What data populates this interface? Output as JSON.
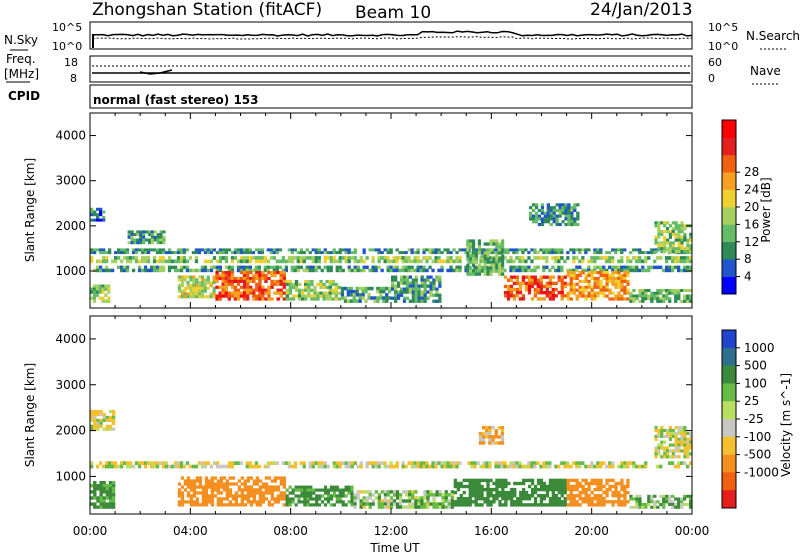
{
  "header": {
    "station": "Zhongshan Station (fitACF)",
    "beam": "Beam 10",
    "date": "24/Jan/2013"
  },
  "sky_panel": {
    "left_label": "N.Sky",
    "right_label": "N.Search",
    "left_ticks": [
      "10^5",
      "10^0"
    ],
    "right_ticks": [
      "10^5",
      "10^0"
    ]
  },
  "freq_panel": {
    "left_label_1": "Freq.",
    "left_label_2": "[MHz]",
    "right_label": "Nave",
    "left_ticks": [
      "18",
      "8"
    ],
    "right_ticks": [
      "60",
      "0"
    ]
  },
  "cpid": {
    "label": "CPID",
    "mode": "normal (fast stereo) 153"
  },
  "chart_data": [
    {
      "type": "heatmap",
      "name": "power",
      "ylabel": "Slant Range [km]",
      "xlabel": "Time UT",
      "x_ticks": [
        "00:00",
        "04:00",
        "08:00",
        "12:00",
        "16:00",
        "20:00",
        "00:00"
      ],
      "x_range_hours": [
        0,
        24
      ],
      "ylim": [
        180,
        4500
      ],
      "y_ticks": [
        1000,
        2000,
        3000,
        4000
      ],
      "colorbar": {
        "label": "Power [dB]",
        "ticks": [
          "4",
          "8",
          "12",
          "16",
          "20",
          "24",
          "28"
        ],
        "range": [
          0,
          30
        ],
        "colors": [
          "#0000ff",
          "#2255cc",
          "#2e8b57",
          "#66bb66",
          "#a8d060",
          "#f0d030",
          "#f5a020",
          "#f06010",
          "#e51e1e",
          "#ff0000"
        ]
      },
      "regions": [
        {
          "t0": 0.0,
          "t1": 24.0,
          "r0": 1180,
          "r1": 1330,
          "level": 12
        },
        {
          "t0": 0.0,
          "t1": 24.0,
          "r0": 1380,
          "r1": 1500,
          "level": 7
        },
        {
          "t0": 0.0,
          "t1": 24.0,
          "r0": 980,
          "r1": 1120,
          "level": 8
        },
        {
          "t0": 0.0,
          "t1": 0.6,
          "r0": 2100,
          "r1": 2400,
          "level": 5
        },
        {
          "t0": 1.5,
          "t1": 3.0,
          "r0": 1600,
          "r1": 1900,
          "level": 8
        },
        {
          "t0": 0.0,
          "t1": 0.8,
          "r0": 300,
          "r1": 700,
          "level": 12
        },
        {
          "t0": 3.5,
          "t1": 5.0,
          "r0": 400,
          "r1": 900,
          "level": 14
        },
        {
          "t0": 5.0,
          "t1": 7.8,
          "r0": 350,
          "r1": 1000,
          "level": 24
        },
        {
          "t0": 7.8,
          "t1": 10.0,
          "r0": 350,
          "r1": 800,
          "level": 12
        },
        {
          "t0": 10.0,
          "t1": 12.0,
          "r0": 300,
          "r1": 650,
          "level": 8
        },
        {
          "t0": 12.0,
          "t1": 14.0,
          "r0": 300,
          "r1": 900,
          "level": 8
        },
        {
          "t0": 15.0,
          "t1": 16.5,
          "r0": 900,
          "r1": 1700,
          "level": 10
        },
        {
          "t0": 16.5,
          "t1": 19.0,
          "r0": 350,
          "r1": 900,
          "level": 24
        },
        {
          "t0": 17.5,
          "t1": 19.5,
          "r0": 2000,
          "r1": 2500,
          "level": 7
        },
        {
          "t0": 19.0,
          "t1": 21.5,
          "r0": 350,
          "r1": 1000,
          "level": 20
        },
        {
          "t0": 21.5,
          "t1": 24.0,
          "r0": 300,
          "r1": 600,
          "level": 10
        },
        {
          "t0": 22.5,
          "t1": 24.0,
          "r0": 1400,
          "r1": 2100,
          "level": 12
        }
      ]
    },
    {
      "type": "heatmap",
      "name": "velocity",
      "ylabel": "Slant Range [km]",
      "xlabel": "Time UT",
      "x_ticks": [
        "00:00",
        "04:00",
        "08:00",
        "12:00",
        "16:00",
        "20:00",
        "00:00"
      ],
      "x_range_hours": [
        0,
        24
      ],
      "ylim": [
        180,
        4500
      ],
      "y_ticks": [
        1000,
        2000,
        3000,
        4000
      ],
      "colorbar": {
        "label": "Velocity [m s^-1]",
        "ticks": [
          "1000",
          "500",
          "100",
          "25",
          "-25",
          "-100",
          "-500",
          "-1000"
        ],
        "colors": [
          "#2244cc",
          "#2e6e8e",
          "#3a8a3a",
          "#66bb44",
          "#b8e060",
          "#c8c8c0",
          "#f5c030",
          "#f59020",
          "#f06010",
          "#e51e1e"
        ]
      },
      "regions": [
        {
          "t0": 0.0,
          "t1": 24.0,
          "r0": 1180,
          "r1": 1330,
          "vel": 0
        },
        {
          "t0": 0.0,
          "t1": 1.0,
          "r0": 2000,
          "r1": 2450,
          "vel": 0
        },
        {
          "t0": 0.0,
          "t1": 1.0,
          "r0": 300,
          "r1": 900,
          "vel": 150
        },
        {
          "t0": 3.5,
          "t1": 7.8,
          "r0": 350,
          "r1": 1000,
          "vel": -200
        },
        {
          "t0": 7.8,
          "t1": 10.5,
          "r0": 350,
          "r1": 800,
          "vel": 150
        },
        {
          "t0": 10.5,
          "t1": 14.5,
          "r0": 300,
          "r1": 700,
          "vel": 60
        },
        {
          "t0": 14.5,
          "t1": 19.0,
          "r0": 350,
          "r1": 950,
          "vel": 200
        },
        {
          "t0": 19.0,
          "t1": 21.5,
          "r0": 350,
          "r1": 950,
          "vel": -200
        },
        {
          "t0": 21.5,
          "t1": 24.0,
          "r0": 300,
          "r1": 600,
          "vel": 100
        },
        {
          "t0": 22.5,
          "t1": 24.0,
          "r0": 1400,
          "r1": 2100,
          "vel": 0
        },
        {
          "t0": 15.5,
          "t1": 16.5,
          "r0": 1700,
          "r1": 2100,
          "vel": -100
        }
      ]
    }
  ]
}
